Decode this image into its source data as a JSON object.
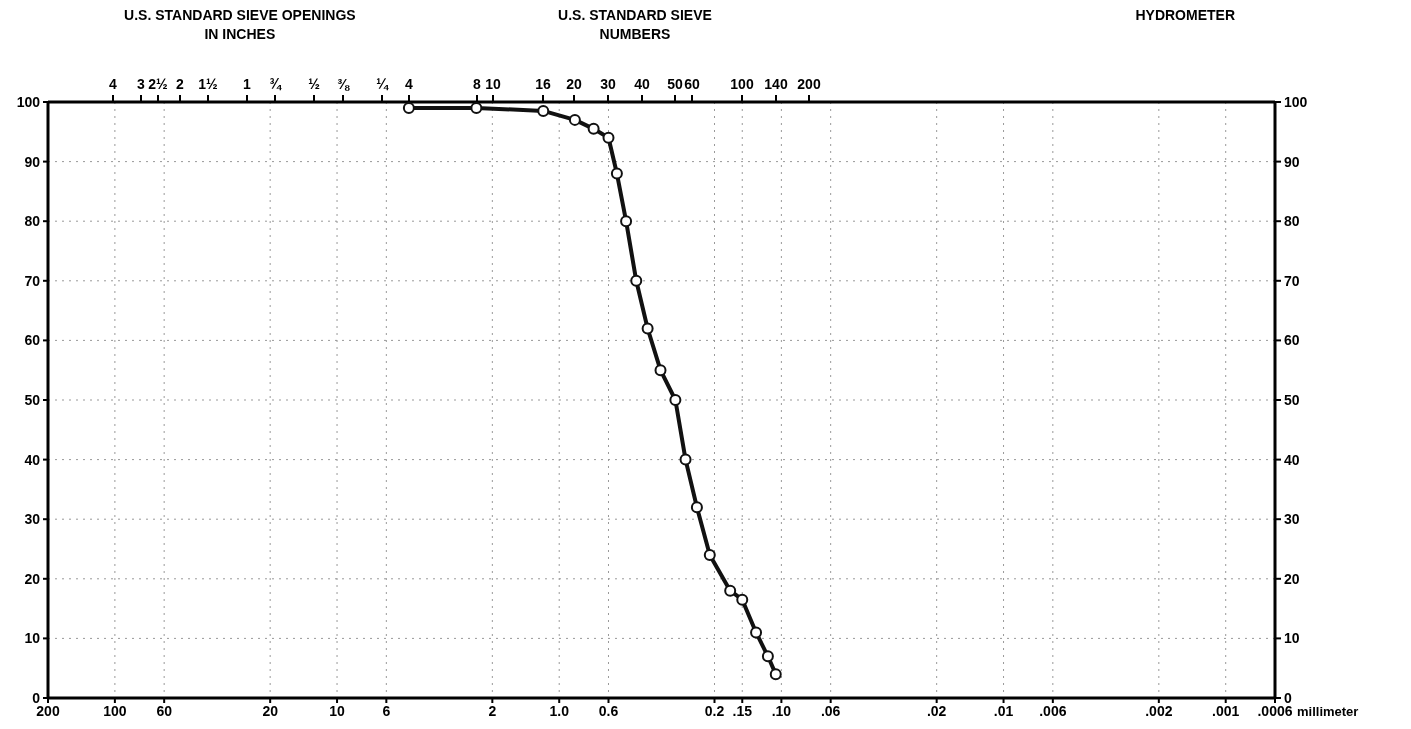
{
  "chart_data": {
    "type": "line",
    "xlabel": "millimeter",
    "annotations": [
      "U.S. STANDARD SIEVE OPENINGS\nIN INCHES",
      "U.S. STANDARD SIEVE\nNUMBERS",
      "HYDROMETER",
      "4",
      "3",
      "2½",
      "2",
      "1½",
      "1",
      "¾",
      "½",
      "⅜",
      "¼",
      "4",
      "8",
      "10",
      "16",
      "20",
      "30",
      "40",
      "50",
      "60",
      "100",
      "140",
      "200"
    ],
    "log": "x",
    "xlim": [
      200,
      0.0006
    ],
    "xticks": [
      200,
      100,
      60,
      20,
      10,
      6,
      2,
      {
        "value": 1,
        "label": "1.0"
      },
      0.6,
      0.2,
      {
        "value": 0.15,
        "label": ".15"
      },
      {
        "value": 0.1,
        "label": ".10"
      },
      {
        "value": 0.06,
        "label": ".06"
      },
      {
        "value": 0.02,
        "label": ".02"
      },
      {
        "value": 0.01,
        "label": ".01"
      },
      {
        "value": 0.006,
        "label": ".006"
      },
      {
        "value": 0.002,
        "label": ".002"
      },
      {
        "value": 0.001,
        "label": ".001"
      },
      {
        "value": 0.0006,
        "label": ".0006"
      }
    ],
    "ylim": [
      0,
      100
    ],
    "yticks": [
      0,
      10,
      20,
      30,
      40,
      50,
      60,
      70,
      80,
      90,
      100
    ],
    "y2lim": [
      0,
      100
    ],
    "y2ticks": [
      0,
      10,
      20,
      30,
      40,
      50,
      60,
      70,
      80,
      90,
      100
    ],
    "grid": true,
    "marker": "circle",
    "line_style": "solid",
    "series": [
      {
        "color": "#111111",
        "x": [
          4.75,
          2.36,
          1.18,
          0.85,
          0.7,
          0.6,
          0.55,
          0.5,
          0.45,
          0.4,
          0.35,
          0.3,
          0.27,
          0.24,
          0.21,
          0.17,
          0.15,
          0.13,
          0.115,
          0.106
        ],
        "values": [
          99,
          99,
          98.5,
          97,
          95.5,
          94,
          88,
          80,
          70,
          62,
          55,
          50,
          40,
          32,
          24,
          18,
          16.5,
          11,
          7,
          4
        ]
      }
    ]
  }
}
